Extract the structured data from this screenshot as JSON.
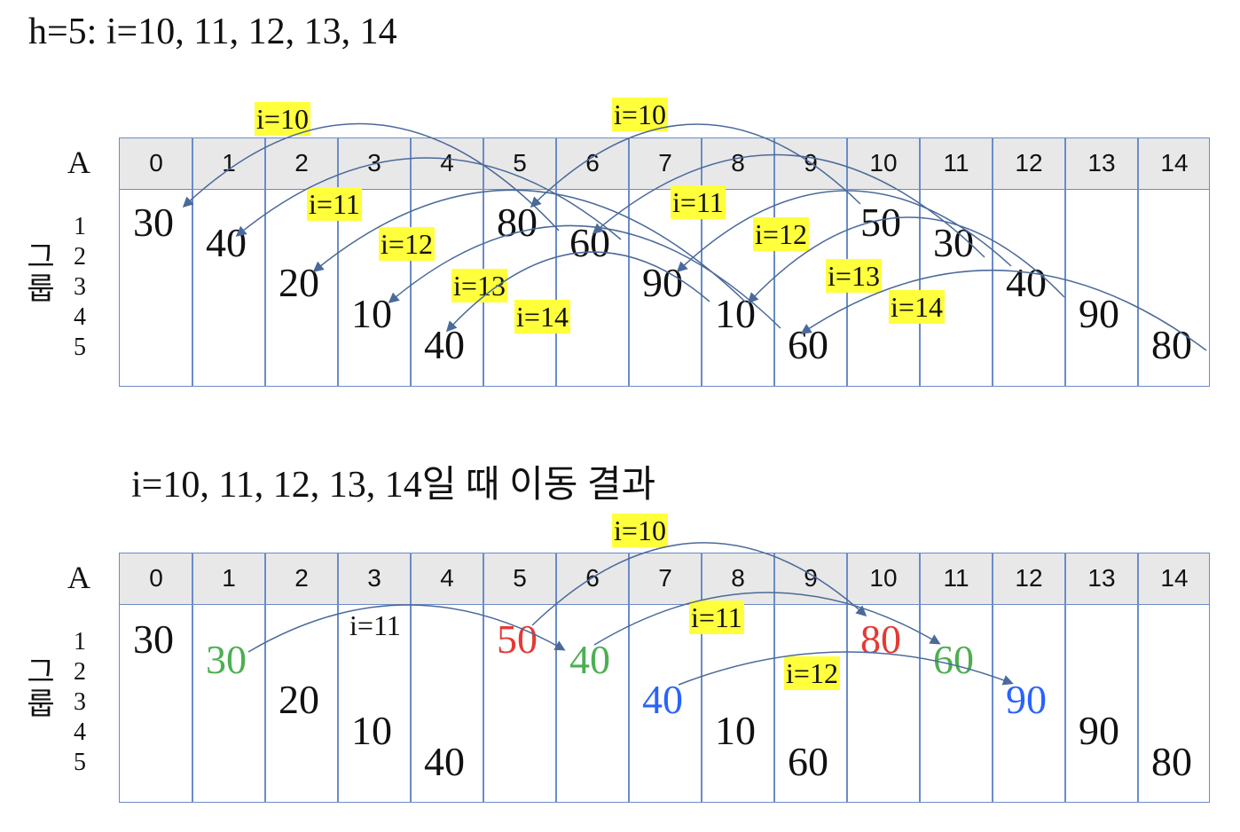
{
  "top": {
    "title": "h=5: i=10, 11, 12, 13, 14",
    "array_label": "A",
    "group_label": [
      "그",
      "룹"
    ],
    "group_numbers": [
      "1",
      "2",
      "3",
      "4",
      "5"
    ],
    "indices": [
      "0",
      "1",
      "2",
      "3",
      "4",
      "5",
      "6",
      "7",
      "8",
      "9",
      "10",
      "11",
      "12",
      "13",
      "14"
    ],
    "cells": [
      {
        "value": "30",
        "group": 1
      },
      {
        "value": "40",
        "group": 2
      },
      {
        "value": "20",
        "group": 3
      },
      {
        "value": "10",
        "group": 4
      },
      {
        "value": "40",
        "group": 5
      },
      {
        "value": "80",
        "group": 1
      },
      {
        "value": "60",
        "group": 2
      },
      {
        "value": "90",
        "group": 3
      },
      {
        "value": "10",
        "group": 4
      },
      {
        "value": "60",
        "group": 5
      },
      {
        "value": "50",
        "group": 1
      },
      {
        "value": "30",
        "group": 2
      },
      {
        "value": "40",
        "group": 3
      },
      {
        "value": "90",
        "group": 4
      },
      {
        "value": "80",
        "group": 5
      }
    ],
    "step_labels": [
      "i=10",
      "i=10",
      "i=11",
      "i=11",
      "i=12",
      "i=12",
      "i=13",
      "i=13",
      "i=14",
      "i=14"
    ]
  },
  "bottom": {
    "title": "i=10, 11, 12, 13, 14일 때 이동 결과",
    "array_label": "A",
    "group_label": [
      "그",
      "룹"
    ],
    "group_numbers": [
      "1",
      "2",
      "3",
      "4",
      "5"
    ],
    "indices": [
      "0",
      "1",
      "2",
      "3",
      "4",
      "5",
      "6",
      "7",
      "8",
      "9",
      "10",
      "11",
      "12",
      "13",
      "14"
    ],
    "cells": [
      {
        "value": "30",
        "group": 1,
        "color": "#111111"
      },
      {
        "value": "30",
        "group": 2,
        "color": "#4caf50"
      },
      {
        "value": "20",
        "group": 3,
        "color": "#111111"
      },
      {
        "value": "10",
        "group": 4,
        "color": "#111111"
      },
      {
        "value": "40",
        "group": 5,
        "color": "#111111"
      },
      {
        "value": "50",
        "group": 1,
        "color": "#e53935"
      },
      {
        "value": "40",
        "group": 2,
        "color": "#4caf50"
      },
      {
        "value": "40",
        "group": 3,
        "color": "#2962ff"
      },
      {
        "value": "10",
        "group": 4,
        "color": "#111111"
      },
      {
        "value": "60",
        "group": 5,
        "color": "#111111"
      },
      {
        "value": "80",
        "group": 1,
        "color": "#e53935"
      },
      {
        "value": "60",
        "group": 2,
        "color": "#4caf50"
      },
      {
        "value": "90",
        "group": 3,
        "color": "#2962ff"
      },
      {
        "value": "90",
        "group": 4,
        "color": "#111111"
      },
      {
        "value": "80",
        "group": 5,
        "color": "#111111"
      }
    ],
    "step_labels": [
      "i=10",
      "i=11",
      "i=11",
      "i=12"
    ]
  },
  "colors": {
    "grid": "#6a8cc7",
    "header_bg": "#e8e8e8",
    "highlight": "#ffff3c",
    "arrow": "#4a6a9a"
  }
}
